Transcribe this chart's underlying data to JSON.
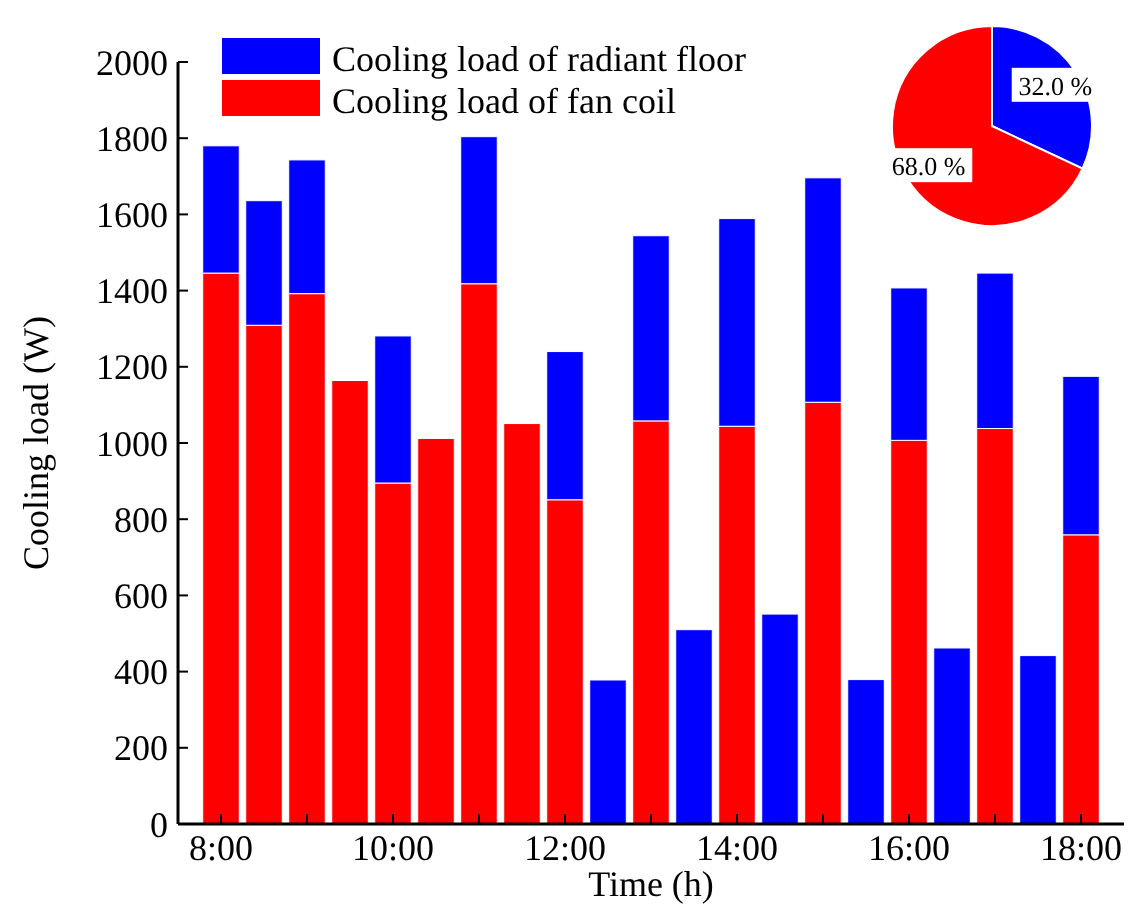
{
  "chart_data": [
    {
      "type": "bar",
      "stacked": true,
      "xlabel": "Time (h)",
      "ylabel": "Cooling load (W)",
      "x": [
        8,
        8.5,
        9,
        9.5,
        10,
        10.5,
        11,
        11.5,
        12,
        12.5,
        13,
        13.5,
        14,
        14.5,
        15,
        15.5,
        16,
        16.5,
        17,
        17.5,
        18
      ],
      "xlim": [
        7.5,
        18.5
      ],
      "xticks": [
        {
          "value": 8,
          "label": "8:00"
        },
        {
          "value": 9,
          "label": null
        },
        {
          "value": 10,
          "label": "10:00"
        },
        {
          "value": 11,
          "label": null
        },
        {
          "value": 12,
          "label": "12:00"
        },
        {
          "value": 13,
          "label": null
        },
        {
          "value": 14,
          "label": "14:00"
        },
        {
          "value": 15,
          "label": null
        },
        {
          "value": 16,
          "label": "16:00"
        },
        {
          "value": 17,
          "label": null
        },
        {
          "value": 18,
          "label": "18:00"
        }
      ],
      "ylim": [
        0,
        2000
      ],
      "yticks": [
        0,
        200,
        400,
        600,
        800,
        1000,
        1200,
        1400,
        1600,
        1800,
        2000
      ],
      "legend": "top left",
      "grid": false,
      "series": [
        {
          "name": "Cooling load of fan coil",
          "color": "#ff0000",
          "values": [
            1446,
            1309,
            1392,
            1164,
            895,
            1012,
            1418,
            1051,
            851,
            null,
            1058,
            null,
            1044,
            null,
            1107,
            null,
            1007,
            null,
            1038,
            null,
            759
          ]
        },
        {
          "name": "Cooling load of radiant floor",
          "color": "#0000ff",
          "values": [
            334,
            327,
            351,
            null,
            386,
            null,
            386,
            null,
            389,
            378,
            486,
            510,
            545,
            551,
            589,
            379,
            400,
            462,
            408,
            442,
            416
          ]
        }
      ]
    },
    {
      "type": "pie",
      "categories": [
        null,
        null
      ],
      "values": [
        32.0,
        68.0
      ],
      "colors": [
        "#0000ff",
        "#ff0000"
      ],
      "value_labels": [
        "32.0 %",
        "68.0 %"
      ]
    }
  ]
}
